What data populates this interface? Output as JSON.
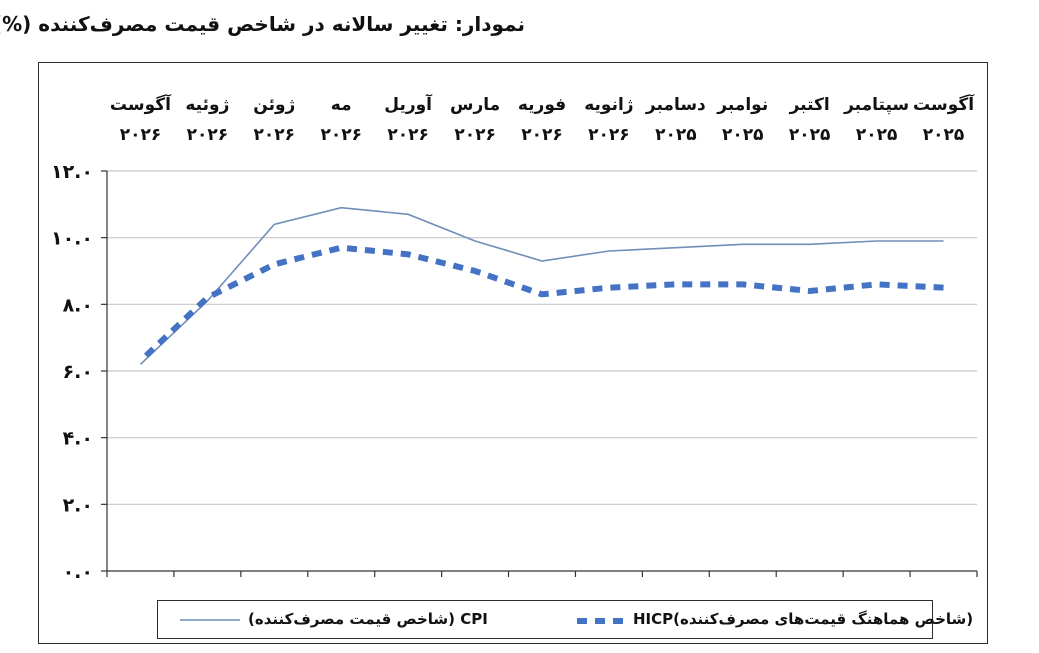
{
  "title": "نمودار: تغییر سالانه در شاخص قیمت مصرف‌کننده (%)",
  "chart_data": {
    "type": "line",
    "title": "نمودار: تغییر سالانه در شاخص قیمت مصرف‌کننده (%)",
    "categories": [
      [
        "آگوست",
        "۲۰۲۵"
      ],
      [
        "سپتامبر",
        "۲۰۲۵"
      ],
      [
        "اکتبر",
        "۲۰۲۵"
      ],
      [
        "نوامبر",
        "۲۰۲۵"
      ],
      [
        "دسامبر",
        "۲۰۲۵"
      ],
      [
        "ژانویه",
        "۲۰۲۶"
      ],
      [
        "فوریه",
        "۲۰۲۶"
      ],
      [
        "مارس",
        "۲۰۲۶"
      ],
      [
        "آوریل",
        "۲۰۲۶"
      ],
      [
        "مه",
        "۲۰۲۶"
      ],
      [
        "ژوئن",
        "۲۰۲۶"
      ],
      [
        "ژوئیه",
        "۲۰۲۶"
      ],
      [
        "آگوست",
        "۲۰۲۶"
      ]
    ],
    "series": [
      {
        "name": "CPI (شاخص قیمت مصرف‌کننده)",
        "values": [
          9.9,
          9.9,
          9.8,
          9.8,
          9.7,
          9.6,
          9.3,
          9.9,
          10.7,
          10.9,
          10.4,
          8.1,
          6.2
        ],
        "color": "#6f8fb8",
        "style": "solid"
      },
      {
        "name": "HICP(شاخص هماهنگ قیمت‌های مصرف‌کننده)",
        "values": [
          8.5,
          8.6,
          8.4,
          8.6,
          8.6,
          8.5,
          8.3,
          9.0,
          9.5,
          9.7,
          9.2,
          8.2,
          6.3
        ],
        "color": "#4472c4",
        "style": "dashed"
      }
    ],
    "yticks": [
      "۰.۰",
      "۲.۰",
      "۴.۰",
      "۶.۰",
      "۸.۰",
      "۱۰.۰",
      "۱۲.۰"
    ],
    "ylim": [
      0,
      12
    ],
    "grid": true,
    "legend_position": "bottom"
  },
  "legend": {
    "cpi_label": "(شاخص قیمت مصرف‌کننده) CPI",
    "hicp_label": "HICP(شاخص هماهنگ قیمت‌های مصرف‌کننده)"
  }
}
